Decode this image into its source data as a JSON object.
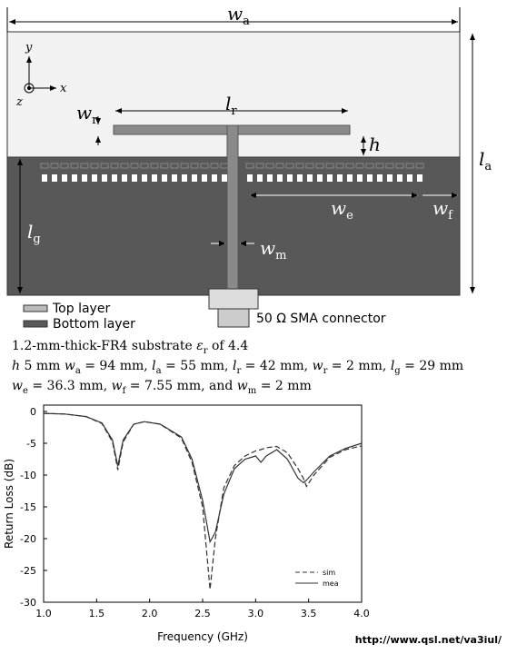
{
  "diagram": {
    "dimensions": [
      {
        "main": "w",
        "sub": "a"
      },
      {
        "main": "l",
        "sub": "r"
      },
      {
        "main": "w",
        "sub": "r"
      },
      {
        "main": "h"
      },
      {
        "main": "l",
        "sub": "a"
      },
      {
        "main": "w",
        "sub": "e"
      },
      {
        "main": "w",
        "sub": "f"
      },
      {
        "main": "l",
        "sub": "g"
      },
      {
        "main": "w",
        "sub": "m"
      }
    ],
    "axes": [
      "y",
      "x",
      "z"
    ],
    "legend": [
      "Top layer",
      "Bottom layer"
    ],
    "connector": "50 Ω SMA connector"
  },
  "caption": [
    [
      {
        "text": "1.2-mm-thick-FR4 substrate  ",
        "style": "normal"
      },
      {
        "text": "ε",
        "style": "italic"
      },
      {
        "text": "r",
        "style": "sub"
      },
      {
        "text": " of 4.4",
        "style": "normal"
      }
    ],
    [
      {
        "text": "h",
        "style": "italic"
      },
      {
        "text": " 5 mm  ",
        "style": "normal"
      },
      {
        "text": "w",
        "style": "italic"
      },
      {
        "text": "a",
        "style": "sub"
      },
      {
        "text": " = 94 mm, ",
        "style": "normal"
      },
      {
        "text": "l",
        "style": "italic"
      },
      {
        "text": "a",
        "style": "sub"
      },
      {
        "text": " = 55 mm, ",
        "style": "normal"
      },
      {
        "text": "l",
        "style": "italic"
      },
      {
        "text": "r",
        "style": "sub"
      },
      {
        "text": " = 42 mm, ",
        "style": "normal"
      },
      {
        "text": "w",
        "style": "italic"
      },
      {
        "text": "r",
        "style": "sub"
      },
      {
        "text": " = 2 mm, ",
        "style": "normal"
      },
      {
        "text": "l",
        "style": "italic"
      },
      {
        "text": "g",
        "style": "sub"
      },
      {
        "text": " = 29 mm",
        "style": "normal"
      }
    ],
    [
      {
        "text": "w",
        "style": "italic"
      },
      {
        "text": "e",
        "style": "sub"
      },
      {
        "text": " = 36.3 mm, ",
        "style": "normal"
      },
      {
        "text": "w",
        "style": "italic"
      },
      {
        "text": "f",
        "style": "sub"
      },
      {
        "text": " = 7.55 mm, and ",
        "style": "normal"
      },
      {
        "text": "w",
        "style": "italic"
      },
      {
        "text": "m",
        "style": "sub"
      },
      {
        "text": " = 2 mm",
        "style": "normal"
      }
    ]
  ],
  "chart_data": {
    "type": "line",
    "x_label": "Frequency (GHz)",
    "y_label": "Return Loss (dB)",
    "x": [
      1.0,
      1.2,
      1.4,
      1.55,
      1.65,
      1.7,
      1.75,
      1.85,
      1.95,
      2.1,
      2.3,
      2.4,
      2.5,
      2.57,
      2.62,
      2.7,
      2.8,
      2.9,
      3.0,
      3.05,
      3.1,
      3.2,
      3.3,
      3.4,
      3.45,
      3.48,
      3.55,
      3.7,
      3.85,
      4.0
    ],
    "series": [
      {
        "name": "sim",
        "color": "#333333",
        "dash": "dashed",
        "values": [
          -0.3,
          -0.4,
          -0.8,
          -1.9,
          -4.8,
          -9.2,
          -4.8,
          -2.0,
          -1.6,
          -2.0,
          -4.2,
          -8.0,
          -15,
          -28,
          -20,
          -12,
          -8.5,
          -7.0,
          -6.2,
          -6.0,
          -5.7,
          -5.5,
          -6.5,
          -9.0,
          -10.5,
          -11.8,
          -10,
          -7.2,
          -6.0,
          -5.4
        ]
      },
      {
        "name": "mea",
        "color": "#333333",
        "dash": "solid",
        "values": [
          -0.3,
          -0.4,
          -0.8,
          -1.8,
          -4.5,
          -8.6,
          -4.5,
          -2.0,
          -1.6,
          -2.0,
          -4.0,
          -7.5,
          -14,
          -20.5,
          -19,
          -13,
          -9,
          -7.5,
          -7.0,
          -8.0,
          -7.0,
          -6.0,
          -7.5,
          -10.5,
          -11.2,
          -10.8,
          -9.5,
          -7.0,
          -5.8,
          -5.0
        ]
      }
    ],
    "xlim": [
      1.0,
      4.0
    ],
    "xticks": [
      {
        "value": 1,
        "label": "1.0"
      },
      1.5,
      {
        "value": 2,
        "label": "2.0"
      },
      2.5,
      {
        "value": 3,
        "label": "3.0"
      },
      3.5,
      {
        "value": 4,
        "label": "4.0"
      }
    ],
    "ylim": [
      -30,
      1
    ],
    "yticks": [
      0,
      -5,
      -10,
      -15,
      -20,
      -25,
      -30
    ],
    "legend": "lower-right"
  },
  "source": "http://www.qsl.net/va3iul/"
}
